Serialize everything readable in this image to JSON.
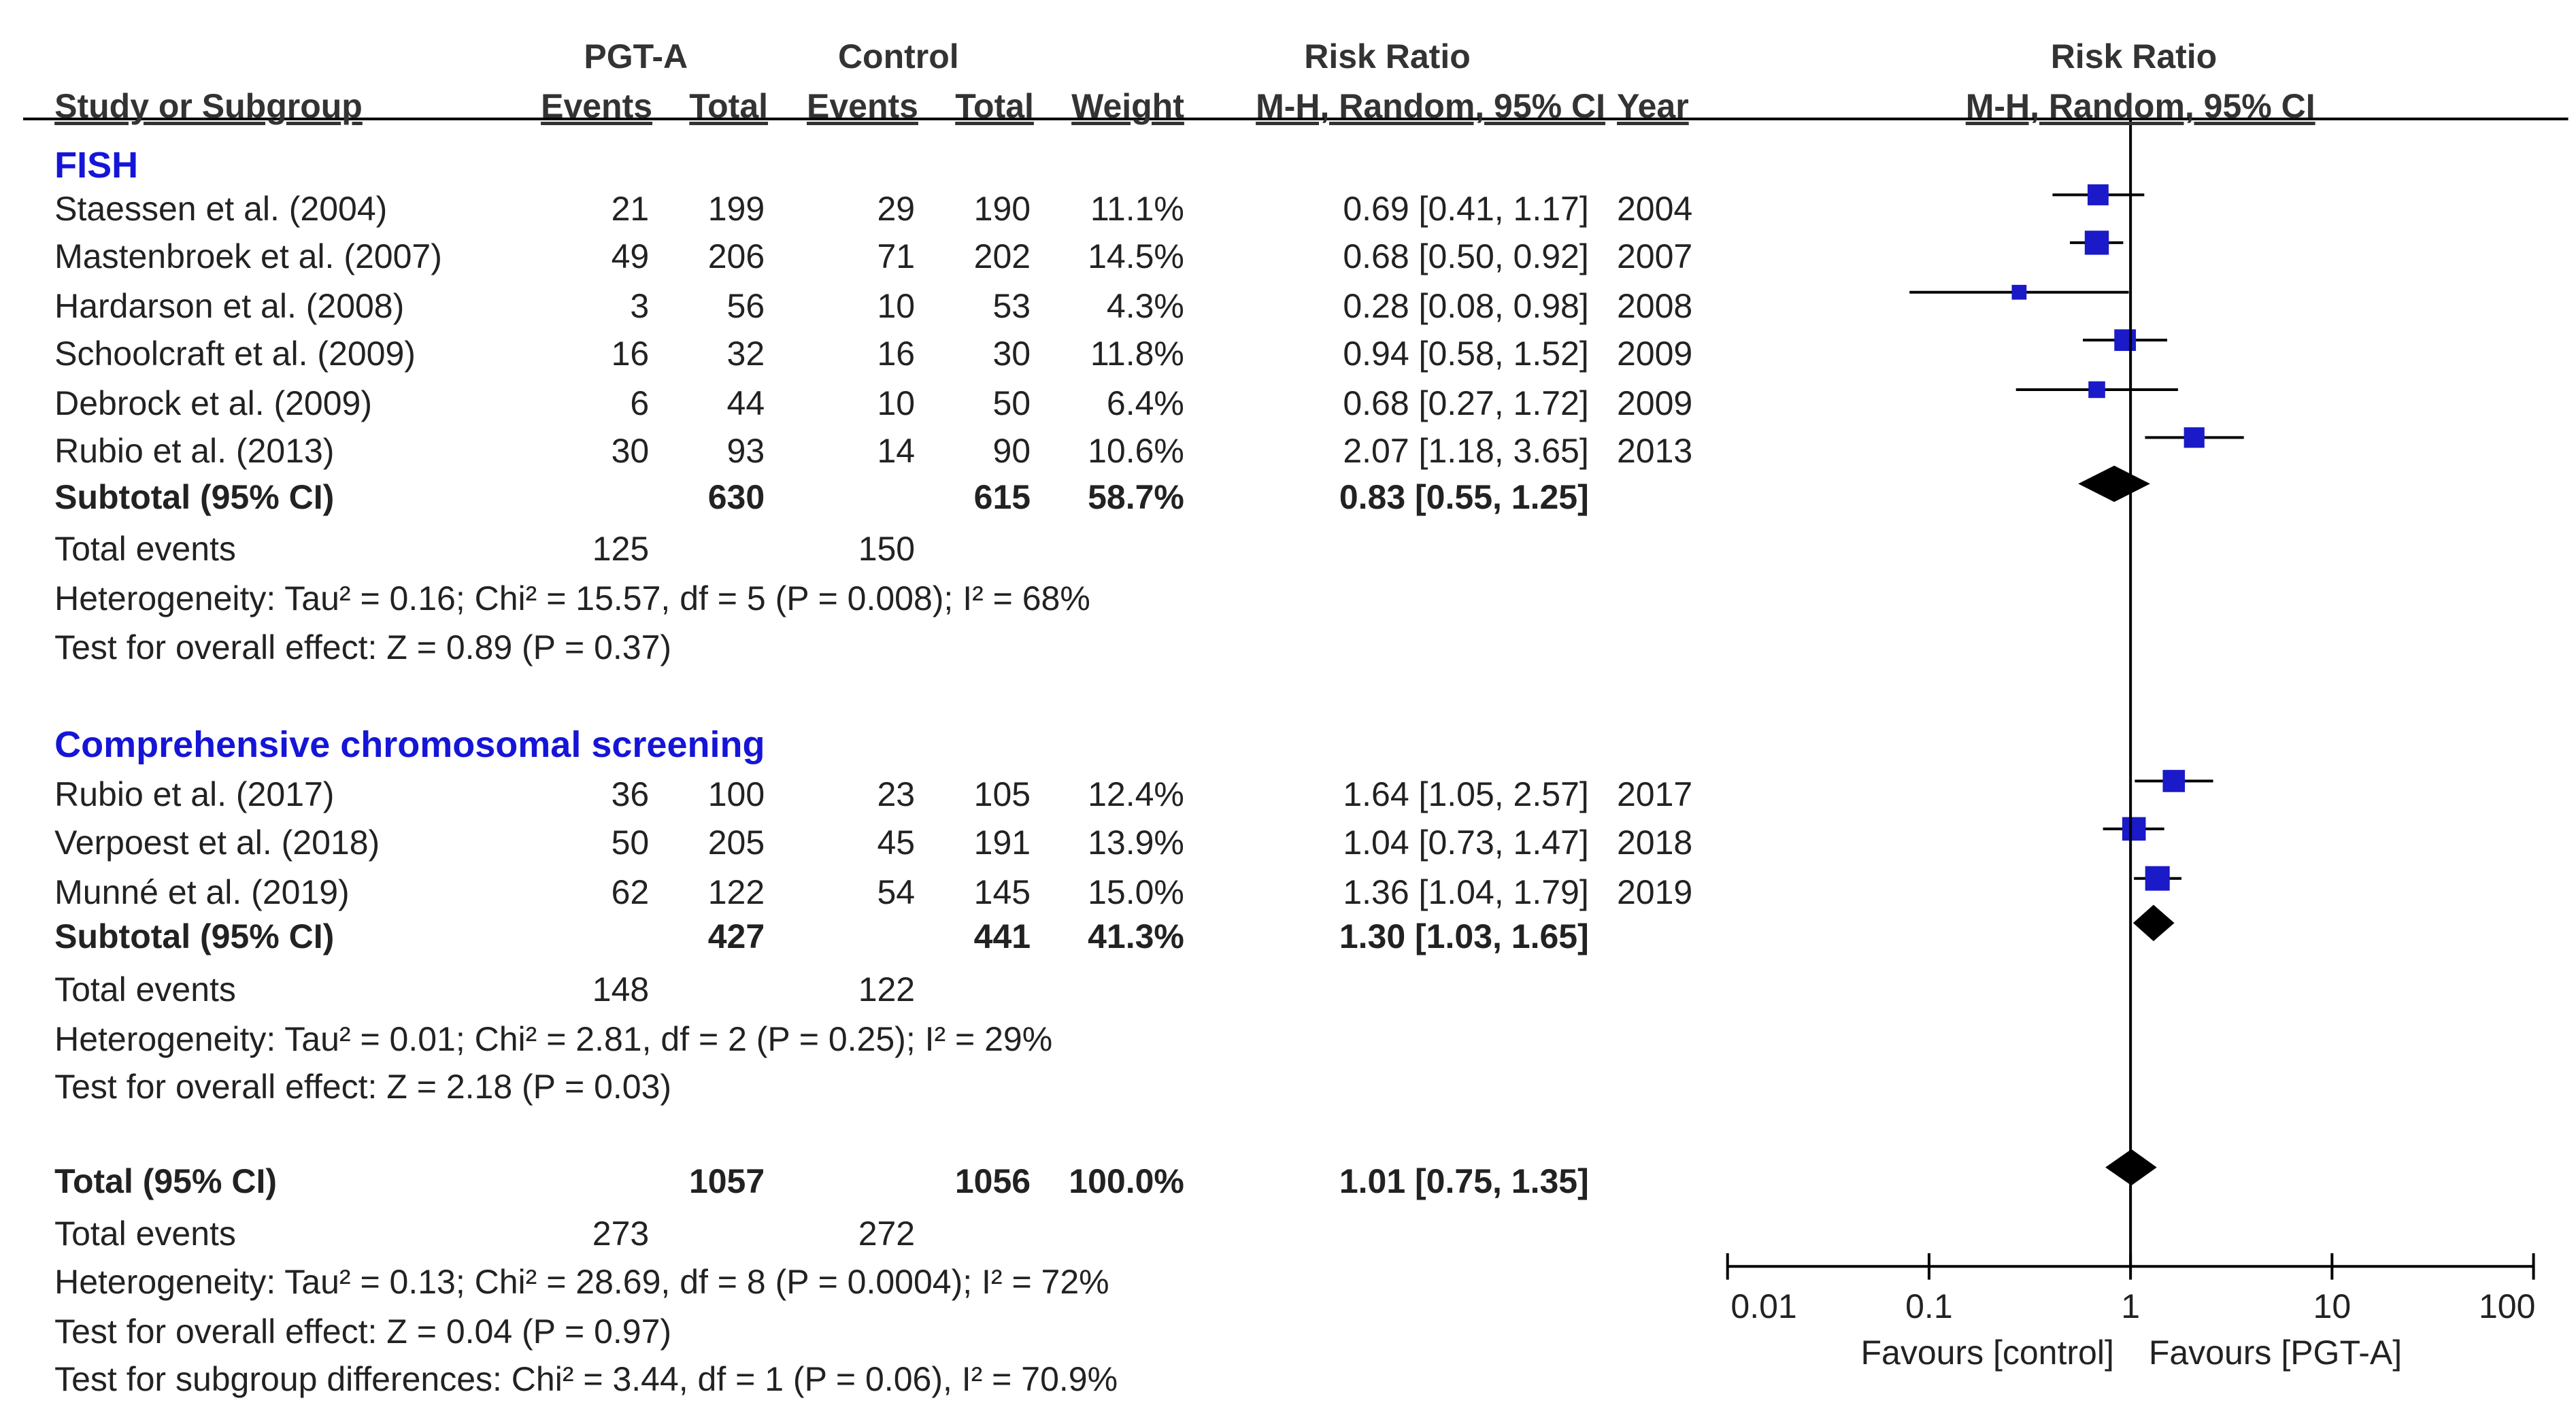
{
  "chart_data": {
    "type": "forest",
    "title": "Risk Ratio",
    "plot_header": {
      "title": "Risk Ratio",
      "subtitle": "M-H, Random, 95% CI"
    },
    "header": {
      "group1": "PGT-A",
      "group2": "Control",
      "rr_title": "Risk Ratio",
      "study": "Study or Subgroup",
      "events1": "Events",
      "total1": "Total",
      "events2": "Events",
      "total2": "Total",
      "weight": "Weight",
      "method": "M-H, Random, 95% CI",
      "year": "Year"
    },
    "x_axis": {
      "scale": "log",
      "range": [
        0.01,
        100
      ],
      "ticks": [
        0.01,
        0.1,
        1,
        10,
        100
      ],
      "tick_labels": [
        "0.01",
        "0.1",
        "1",
        "10",
        "100"
      ],
      "favours_left": "Favours [control]",
      "favours_right": "Favours [PGT-A]"
    },
    "subgroups": [
      {
        "name": "FISH",
        "studies": [
          {
            "name": "Staessen et al. (2004)",
            "e1": "21",
            "n1": "199",
            "e2": "29",
            "n2": "190",
            "weight": "11.1%",
            "ci_text": "0.69 [0.41, 1.17]",
            "year": "2004",
            "rr": 0.69,
            "lo": 0.41,
            "hi": 1.17,
            "w": 11.1
          },
          {
            "name": "Mastenbroek et al. (2007)",
            "e1": "49",
            "n1": "206",
            "e2": "71",
            "n2": "202",
            "weight": "14.5%",
            "ci_text": "0.68 [0.50, 0.92]",
            "year": "2007",
            "rr": 0.68,
            "lo": 0.5,
            "hi": 0.92,
            "w": 14.5
          },
          {
            "name": "Hardarson et al. (2008)",
            "e1": "3",
            "n1": "56",
            "e2": "10",
            "n2": "53",
            "weight": "4.3%",
            "ci_text": "0.28 [0.08, 0.98]",
            "year": "2008",
            "rr": 0.28,
            "lo": 0.08,
            "hi": 0.98,
            "w": 4.3
          },
          {
            "name": "Schoolcraft et al. (2009)",
            "e1": "16",
            "n1": "32",
            "e2": "16",
            "n2": "30",
            "weight": "11.8%",
            "ci_text": "0.94 [0.58, 1.52]",
            "year": "2009",
            "rr": 0.94,
            "lo": 0.58,
            "hi": 1.52,
            "w": 11.8
          },
          {
            "name": "Debrock et al. (2009)",
            "e1": "6",
            "n1": "44",
            "e2": "10",
            "n2": "50",
            "weight": "6.4%",
            "ci_text": "0.68 [0.27, 1.72]",
            "year": "2009",
            "rr": 0.68,
            "lo": 0.27,
            "hi": 1.72,
            "w": 6.4
          },
          {
            "name": "Rubio et al. (2013)",
            "e1": "30",
            "n1": "93",
            "e2": "14",
            "n2": "90",
            "weight": "10.6%",
            "ci_text": "2.07 [1.18, 3.65]",
            "year": "2013",
            "rr": 2.07,
            "lo": 1.18,
            "hi": 3.65,
            "w": 10.6
          }
        ],
        "subtotal": {
          "label": "Subtotal (95% CI)",
          "n1": "630",
          "n2": "615",
          "weight": "58.7%",
          "ci_text": "0.83 [0.55, 1.25]",
          "rr": 0.83,
          "lo": 0.55,
          "hi": 1.25
        },
        "events": {
          "label": "Total events",
          "e1": "125",
          "e2": "150"
        },
        "heterogeneity": "Heterogeneity: Tau² = 0.16; Chi² = 15.57, df = 5 (P = 0.008); I² = 68%",
        "overall": "Test for overall effect: Z = 0.89 (P = 0.37)"
      },
      {
        "name": "Comprehensive chromosomal screening",
        "studies": [
          {
            "name": "Rubio et al. (2017)",
            "e1": "36",
            "n1": "100",
            "e2": "23",
            "n2": "105",
            "weight": "12.4%",
            "ci_text": "1.64 [1.05, 2.57]",
            "year": "2017",
            "rr": 1.64,
            "lo": 1.05,
            "hi": 2.57,
            "w": 12.4
          },
          {
            "name": "Verpoest et al. (2018)",
            "e1": "50",
            "n1": "205",
            "e2": "45",
            "n2": "191",
            "weight": "13.9%",
            "ci_text": "1.04 [0.73, 1.47]",
            "year": "2018",
            "rr": 1.04,
            "lo": 0.73,
            "hi": 1.47,
            "w": 13.9
          },
          {
            "name": "Munné et al. (2019)",
            "e1": "62",
            "n1": "122",
            "e2": "54",
            "n2": "145",
            "weight": "15.0%",
            "ci_text": "1.36 [1.04, 1.79]",
            "year": "2019",
            "rr": 1.36,
            "lo": 1.04,
            "hi": 1.79,
            "w": 15.0
          }
        ],
        "subtotal": {
          "label": "Subtotal (95% CI)",
          "n1": "427",
          "n2": "441",
          "weight": "41.3%",
          "ci_text": "1.30 [1.03, 1.65]",
          "rr": 1.3,
          "lo": 1.03,
          "hi": 1.65
        },
        "events": {
          "label": "Total events",
          "e1": "148",
          "e2": "122"
        },
        "heterogeneity": "Heterogeneity: Tau² = 0.01; Chi² = 2.81, df = 2 (P = 0.25); I² = 29%",
        "overall": "Test for overall effect: Z = 2.18 (P = 0.03)"
      }
    ],
    "total": {
      "label": "Total (95% CI)",
      "n1": "1057",
      "n2": "1056",
      "weight": "100.0%",
      "ci_text": "1.01 [0.75, 1.35]",
      "rr": 1.01,
      "lo": 0.75,
      "hi": 1.35
    },
    "total_events": {
      "label": "Total events",
      "e1": "273",
      "e2": "272"
    },
    "total_heterogeneity": "Heterogeneity: Tau² = 0.13; Chi² = 28.69, df = 8 (P = 0.0004); I² = 72%",
    "total_overall": "Test for overall effect: Z = 0.04 (P = 0.97)",
    "subgroup_test": "Test for subgroup differences: Chi² = 3.44, df = 1 (P = 0.06), I² = 70.9%",
    "colors": {
      "group": "#1515d8",
      "marker": "#1a1ac8",
      "diamond": "#000000",
      "text": "#222222"
    }
  }
}
